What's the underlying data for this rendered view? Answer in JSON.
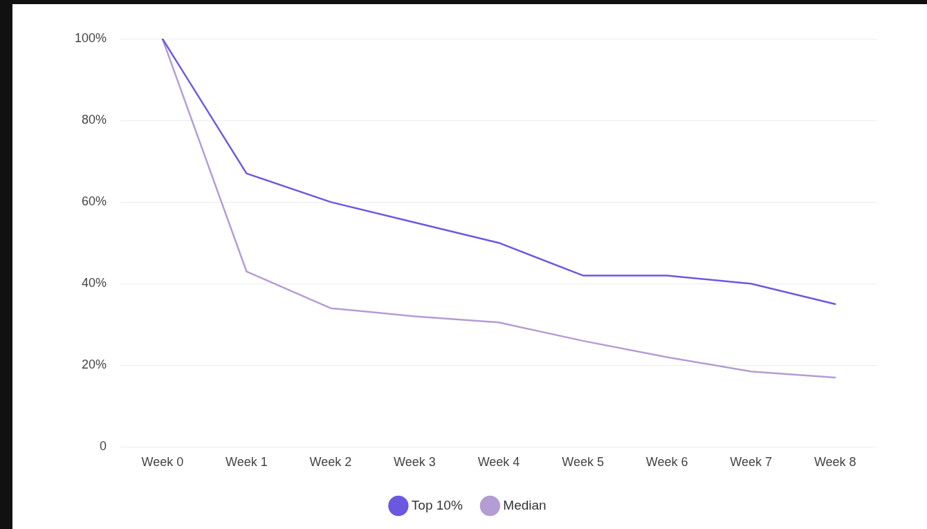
{
  "chart_data": {
    "type": "line",
    "categories": [
      "Week 0",
      "Week 1",
      "Week 2",
      "Week 3",
      "Week 4",
      "Week 5",
      "Week 6",
      "Week 7",
      "Week 8"
    ],
    "series": [
      {
        "name": "Top 10%",
        "color": "#6c58e0",
        "values": [
          100,
          67,
          60,
          55,
          50,
          42,
          42,
          40,
          35
        ]
      },
      {
        "name": "Median",
        "color": "#b49cd4",
        "values": [
          100,
          43,
          34,
          32,
          30.5,
          26,
          22,
          18.5,
          17
        ]
      }
    ],
    "ylim": [
      0,
      100
    ],
    "yticks": [
      {
        "value": 0,
        "label": "0"
      },
      {
        "value": 20,
        "label": "20%"
      },
      {
        "value": 40,
        "label": "40%"
      },
      {
        "value": 60,
        "label": "60%"
      },
      {
        "value": 80,
        "label": "80%"
      },
      {
        "value": 100,
        "label": "100%"
      }
    ],
    "grid": "y",
    "legend": "bottom",
    "marker": "none",
    "line_style": "solid"
  }
}
